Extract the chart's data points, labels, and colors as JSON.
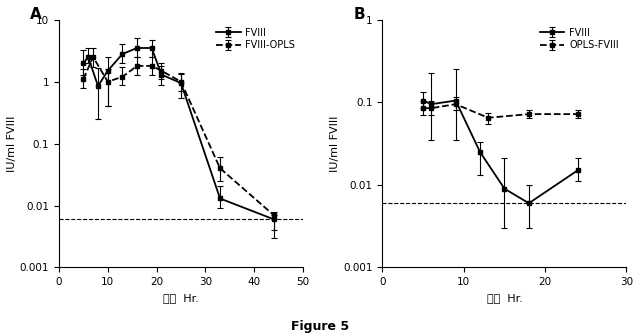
{
  "panel_A": {
    "label": "A",
    "xlabel": "時間  Hr.",
    "ylabel": "IU/ml FVIII",
    "xlim": [
      0,
      50
    ],
    "ylim": [
      0.001,
      10
    ],
    "xticks": [
      0,
      10,
      20,
      30,
      40,
      50
    ],
    "hline": 0.006,
    "fviii_x": [
      5,
      6,
      8,
      10,
      13,
      16,
      19,
      21,
      25,
      33,
      44
    ],
    "fviii_y": [
      2.0,
      2.5,
      0.85,
      1.5,
      2.8,
      3.5,
      3.5,
      1.3,
      0.95,
      0.013,
      0.006
    ],
    "fviii_yerr_lo": [
      0.7,
      0.5,
      0.6,
      1.1,
      0.8,
      1.0,
      1.0,
      0.4,
      0.4,
      0.004,
      0.003
    ],
    "fviii_yerr_hi": [
      1.2,
      1.0,
      0.8,
      1.0,
      1.2,
      1.5,
      1.2,
      0.5,
      0.4,
      0.008,
      0.001
    ],
    "opls_x": [
      5,
      7,
      10,
      13,
      16,
      19,
      21,
      25,
      33,
      44
    ],
    "opls_y": [
      1.1,
      2.5,
      1.0,
      1.2,
      1.8,
      1.8,
      1.5,
      1.0,
      0.04,
      0.007
    ],
    "opls_yerr_lo": [
      0.3,
      0.8,
      0.6,
      0.3,
      0.5,
      0.5,
      0.4,
      0.3,
      0.015,
      0.003
    ],
    "opls_yerr_hi": [
      0.5,
      1.0,
      0.6,
      0.5,
      0.7,
      0.7,
      0.5,
      0.4,
      0.02,
      0.001
    ],
    "legend_fviii": "FVIII",
    "legend_opls": "FVIII-OPLS"
  },
  "panel_B": {
    "label": "B",
    "xlabel": "時間  Hr.",
    "ylabel": "IU/ml FVIII",
    "xlim": [
      0,
      30
    ],
    "ylim": [
      0.001,
      1
    ],
    "xticks": [
      0,
      10,
      20,
      30
    ],
    "hline": 0.006,
    "fviii_x": [
      5,
      6,
      9,
      12,
      15,
      18,
      24
    ],
    "fviii_y": [
      0.105,
      0.095,
      0.105,
      0.025,
      0.009,
      0.006,
      0.015
    ],
    "fviii_yerr_lo": [
      0.02,
      0.06,
      0.07,
      0.012,
      0.006,
      0.003,
      0.004
    ],
    "fviii_yerr_hi": [
      0.03,
      0.13,
      0.15,
      0.008,
      0.012,
      0.004,
      0.006
    ],
    "opls_x": [
      5,
      6,
      9,
      13,
      18,
      24
    ],
    "opls_y": [
      0.085,
      0.085,
      0.095,
      0.065,
      0.072,
      0.072
    ],
    "opls_yerr_lo": [
      0.015,
      0.015,
      0.015,
      0.01,
      0.008,
      0.008
    ],
    "opls_yerr_hi": [
      0.02,
      0.02,
      0.02,
      0.01,
      0.008,
      0.008
    ],
    "legend_fviii": "FVIII",
    "legend_opls": "OPLS-FVIII"
  },
  "figure_label": "Figure 5",
  "bg_color": "#ffffff",
  "line_color": "black"
}
